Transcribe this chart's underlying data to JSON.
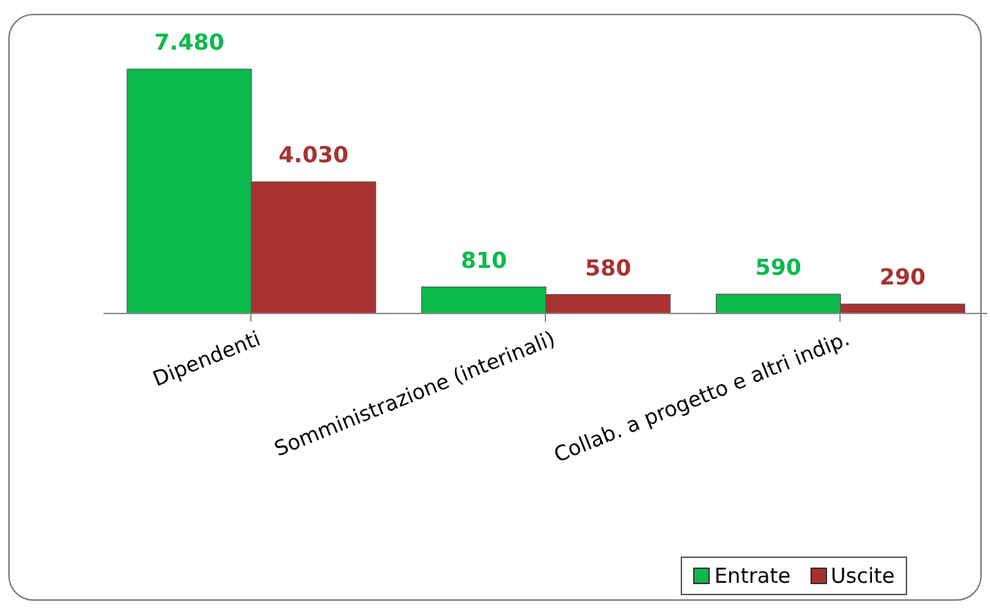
{
  "chart_data": {
    "type": "bar",
    "categories": [
      "Dipendenti",
      "Somministrazione (interinali)",
      "Collab. a progetto e altri indip."
    ],
    "series": [
      {
        "name": "Entrate",
        "color": "#0cb94c",
        "values": [
          7480,
          810,
          590
        ],
        "value_labels": [
          "7.480",
          "810",
          "590"
        ]
      },
      {
        "name": "Uscite",
        "color": "#a83232",
        "values": [
          4030,
          580,
          290
        ],
        "value_labels": [
          "4.030",
          "580",
          "290"
        ]
      }
    ],
    "legend": "bottom right",
    "grid": false
  }
}
